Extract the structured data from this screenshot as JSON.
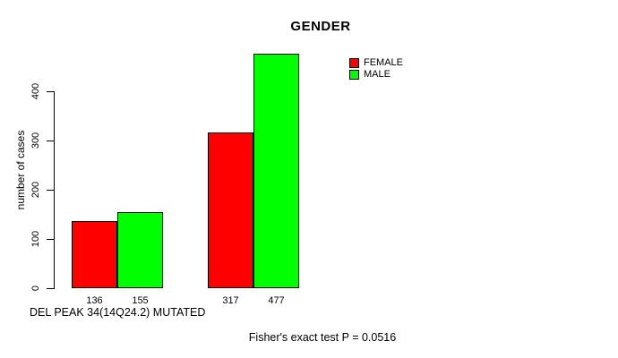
{
  "chart_data": {
    "type": "bar",
    "title": "GENDER",
    "categories": [
      "",
      ""
    ],
    "series": [
      {
        "name": "FEMALE",
        "color": "#ff0000",
        "values": [
          136,
          317
        ]
      },
      {
        "name": "MALE",
        "color": "#00ff00",
        "values": [
          155,
          477
        ]
      }
    ],
    "bar_value_labels": [
      [
        136,
        155
      ],
      [
        317,
        477
      ]
    ],
    "xlabel": "DEL PEAK 34(14Q24.2) MUTATED",
    "ylabel": "number of cases",
    "ylim": [
      0,
      400
    ],
    "yticks": [
      0,
      100,
      200,
      300,
      400
    ],
    "grid": false,
    "legend_position": "top-right",
    "annotation": "Fisher's exact test P = 0.0516"
  }
}
